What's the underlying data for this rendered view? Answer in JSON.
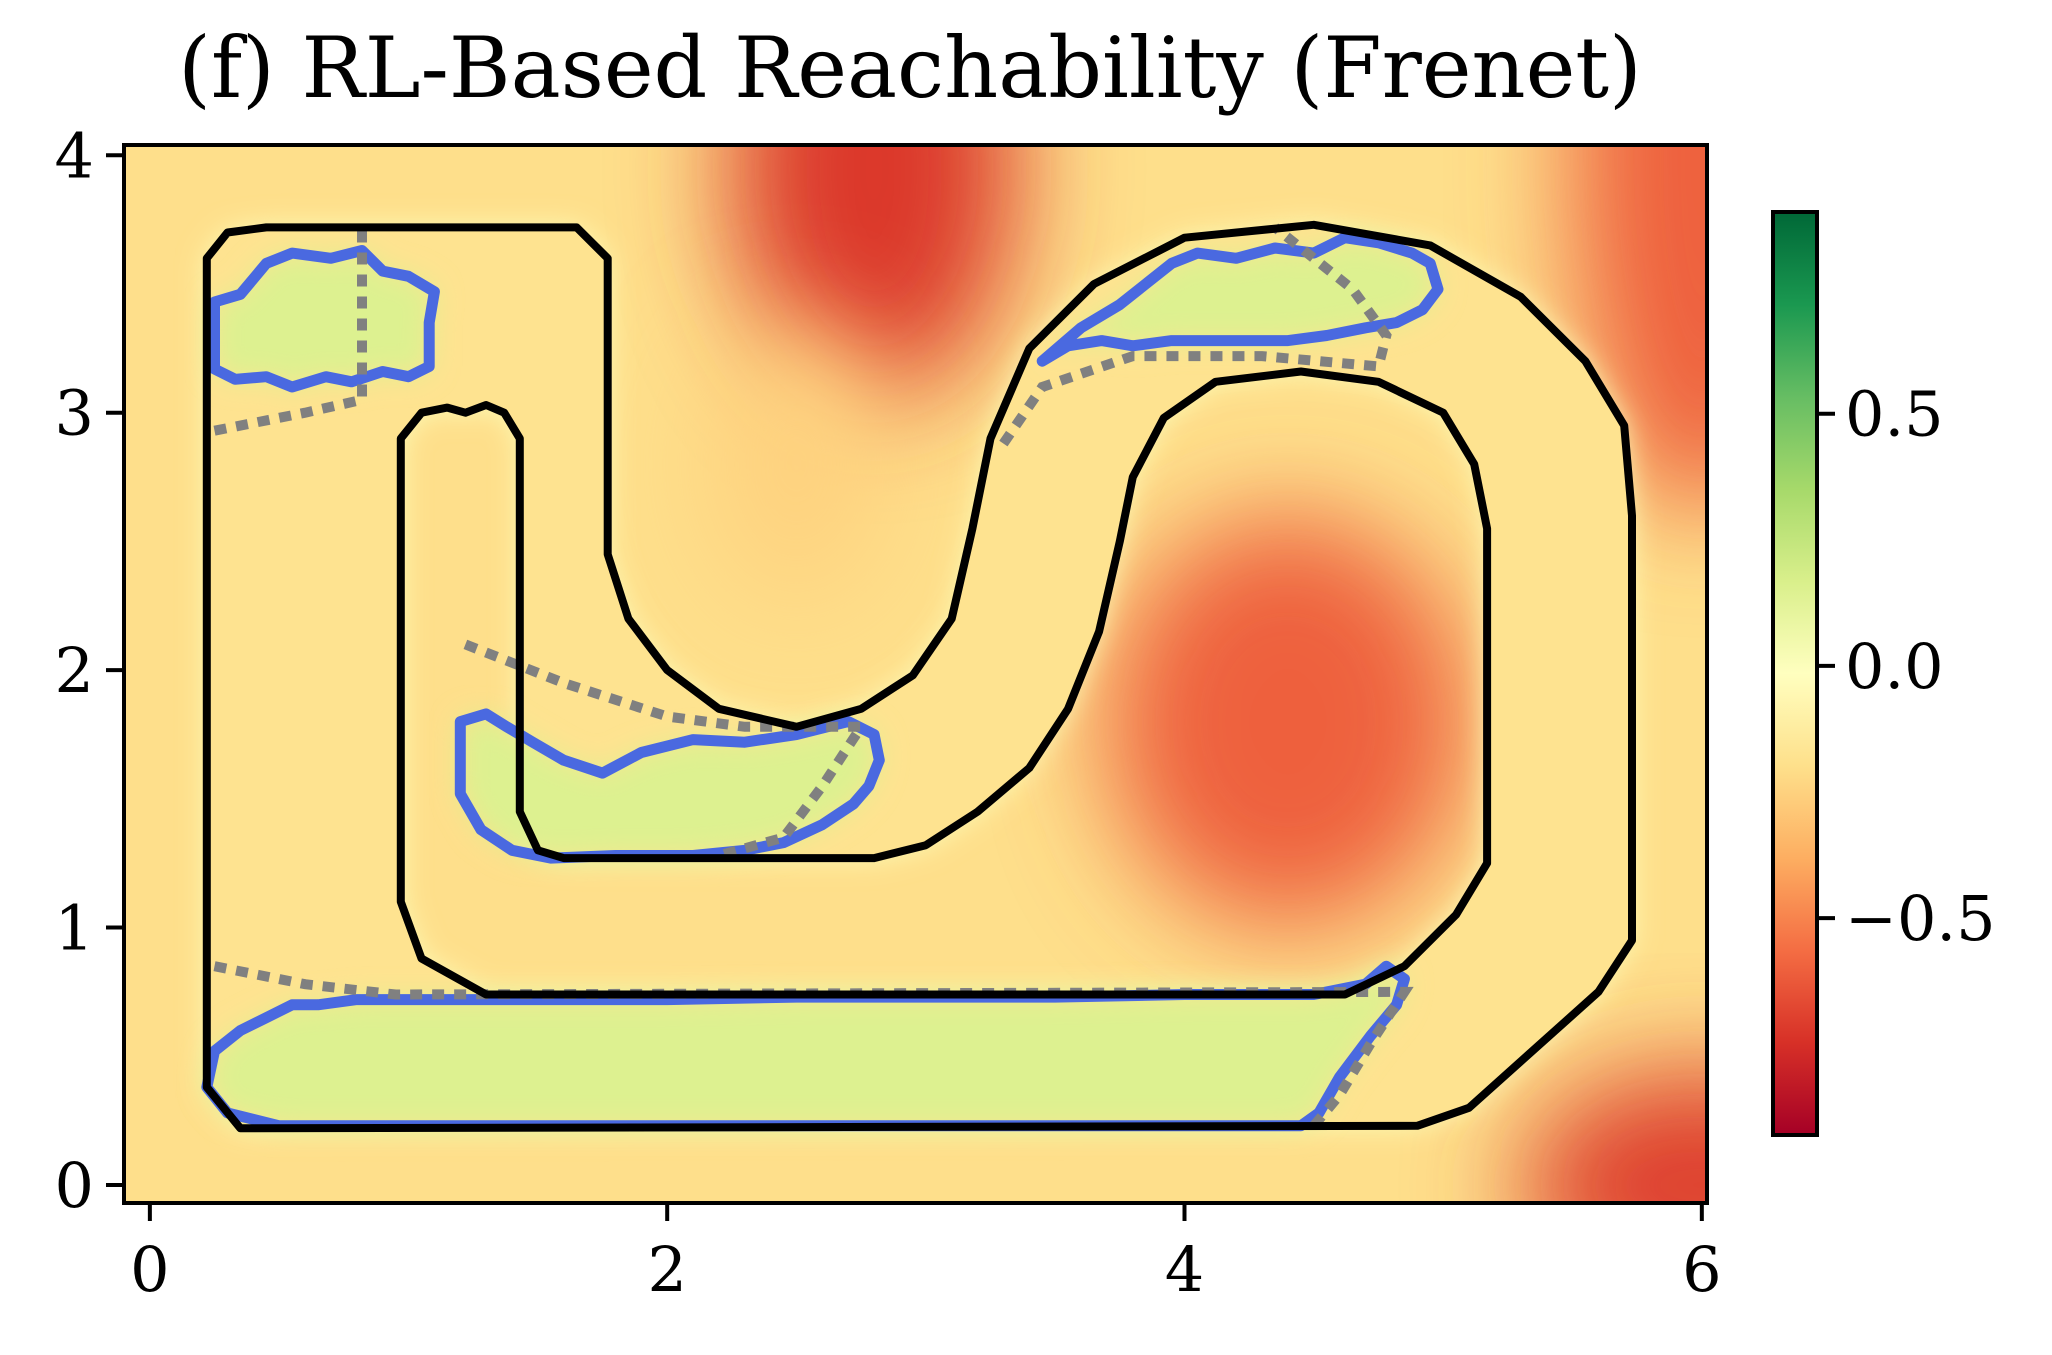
{
  "chart_data": {
    "type": "heatmap",
    "title": "(f) RL-Based Reachability (Frenet)",
    "xlabel": "",
    "ylabel": "",
    "xlim": [
      -0.1,
      6.02
    ],
    "ylim": [
      -0.07,
      4.04
    ],
    "x_ticks": [
      0,
      2,
      4,
      6
    ],
    "x_tick_labels": [
      "0",
      "2",
      "4",
      "6"
    ],
    "y_ticks": [
      0,
      1,
      2,
      3,
      4
    ],
    "y_tick_labels": [
      "0",
      "1",
      "2",
      "3",
      "4"
    ],
    "grid": false,
    "colormap": "RdYlGn",
    "colorbar": {
      "range": [
        -0.93,
        0.9
      ],
      "ticks": [
        0.5,
        0.0,
        -0.5
      ],
      "tick_labels": [
        "0.5",
        "0.0",
        "−0.5"
      ],
      "stops": [
        "#a50026",
        "#d73027",
        "#f46d43",
        "#fdae61",
        "#fee08b",
        "#ffffbf",
        "#d9ef8b",
        "#a6d96a",
        "#66bd63",
        "#1a9850",
        "#006837"
      ]
    },
    "value_field": {
      "base_value": -0.2,
      "blobs": [
        {
          "center": [
            2.8,
            3.95
          ],
          "radius": [
            0.55,
            0.9
          ],
          "value": -0.72
        },
        {
          "center": [
            2.5,
            2.8
          ],
          "radius": [
            0.35,
            0.55
          ],
          "value": -0.25
        },
        {
          "center": [
            4.4,
            1.8
          ],
          "radius": [
            0.7,
            0.8
          ],
          "value": -0.6
        },
        {
          "center": [
            6.0,
            4.0
          ],
          "radius": [
            0.5,
            1.4
          ],
          "value": -0.6
        },
        {
          "center": [
            6.0,
            0.0
          ],
          "radius": [
            0.7,
            0.45
          ],
          "value": -0.7
        }
      ],
      "track_value": -0.18,
      "track_edge_value": 0.0,
      "reachable_value": 0.15
    },
    "series": [
      {
        "kind": "track-boundary",
        "color": "#000000",
        "points": [
          [
            0.45,
            3.72
          ],
          [
            1.65,
            3.72
          ],
          [
            1.77,
            3.6
          ],
          [
            1.77,
            2.45
          ],
          [
            1.85,
            2.2
          ],
          [
            2.0,
            2.0
          ],
          [
            2.2,
            1.85
          ],
          [
            2.5,
            1.78
          ],
          [
            2.75,
            1.85
          ],
          [
            2.95,
            1.98
          ],
          [
            3.1,
            2.2
          ],
          [
            3.18,
            2.55
          ],
          [
            3.25,
            2.9
          ],
          [
            3.4,
            3.25
          ],
          [
            3.65,
            3.5
          ],
          [
            4.0,
            3.68
          ],
          [
            4.5,
            3.73
          ],
          [
            4.95,
            3.65
          ],
          [
            5.3,
            3.45
          ],
          [
            5.55,
            3.2
          ],
          [
            5.7,
            2.95
          ],
          [
            5.73,
            2.6
          ],
          [
            5.73,
            0.95
          ],
          [
            5.6,
            0.75
          ],
          [
            5.1,
            0.3
          ],
          [
            4.9,
            0.23
          ],
          [
            0.35,
            0.22
          ],
          [
            0.22,
            0.38
          ],
          [
            0.22,
            3.6
          ],
          [
            0.3,
            3.7
          ]
        ]
      },
      {
        "kind": "track-boundary",
        "color": "#000000",
        "points": [
          [
            1.22,
            3.0
          ],
          [
            1.3,
            3.03
          ],
          [
            1.37,
            3.0
          ],
          [
            1.43,
            2.9
          ],
          [
            1.43,
            1.45
          ],
          [
            1.5,
            1.3
          ],
          [
            1.6,
            1.27
          ],
          [
            2.8,
            1.27
          ],
          [
            3.0,
            1.32
          ],
          [
            3.2,
            1.45
          ],
          [
            3.4,
            1.62
          ],
          [
            3.55,
            1.85
          ],
          [
            3.67,
            2.15
          ],
          [
            3.75,
            2.5
          ],
          [
            3.8,
            2.75
          ],
          [
            3.92,
            2.98
          ],
          [
            4.12,
            3.12
          ],
          [
            4.45,
            3.16
          ],
          [
            4.75,
            3.12
          ],
          [
            5.0,
            3.0
          ],
          [
            5.12,
            2.8
          ],
          [
            5.17,
            2.55
          ],
          [
            5.17,
            1.25
          ],
          [
            5.05,
            1.05
          ],
          [
            4.85,
            0.85
          ],
          [
            4.62,
            0.74
          ],
          [
            1.3,
            0.74
          ],
          [
            1.05,
            0.88
          ],
          [
            0.97,
            1.1
          ],
          [
            0.97,
            2.9
          ],
          [
            1.05,
            3.0
          ],
          [
            1.15,
            3.02
          ]
        ]
      },
      {
        "kind": "reachable-set",
        "color": "#4a69e0",
        "points": [
          [
            0.25,
            3.43
          ],
          [
            0.35,
            3.46
          ],
          [
            0.45,
            3.58
          ],
          [
            0.55,
            3.62
          ],
          [
            0.7,
            3.6
          ],
          [
            0.82,
            3.63
          ],
          [
            0.9,
            3.55
          ],
          [
            1.0,
            3.53
          ],
          [
            1.1,
            3.47
          ],
          [
            1.08,
            3.35
          ],
          [
            1.08,
            3.18
          ],
          [
            1.0,
            3.14
          ],
          [
            0.9,
            3.16
          ],
          [
            0.78,
            3.12
          ],
          [
            0.68,
            3.14
          ],
          [
            0.55,
            3.1
          ],
          [
            0.45,
            3.14
          ],
          [
            0.33,
            3.13
          ],
          [
            0.25,
            3.17
          ]
        ]
      },
      {
        "kind": "reachable-set",
        "color": "#4a69e0",
        "points": [
          [
            3.45,
            3.2
          ],
          [
            3.55,
            3.26
          ],
          [
            3.68,
            3.28
          ],
          [
            3.8,
            3.26
          ],
          [
            3.95,
            3.28
          ],
          [
            4.1,
            3.28
          ],
          [
            4.25,
            3.28
          ],
          [
            4.4,
            3.28
          ],
          [
            4.55,
            3.3
          ],
          [
            4.7,
            3.33
          ],
          [
            4.82,
            3.35
          ],
          [
            4.92,
            3.4
          ],
          [
            4.98,
            3.48
          ],
          [
            4.95,
            3.58
          ],
          [
            4.88,
            3.62
          ],
          [
            4.75,
            3.66
          ],
          [
            4.62,
            3.68
          ],
          [
            4.5,
            3.62
          ],
          [
            4.35,
            3.64
          ],
          [
            4.2,
            3.6
          ],
          [
            4.05,
            3.62
          ],
          [
            3.95,
            3.58
          ],
          [
            3.85,
            3.5
          ],
          [
            3.75,
            3.42
          ],
          [
            3.6,
            3.33
          ]
        ]
      },
      {
        "kind": "reachable-set",
        "color": "#4a69e0",
        "points": [
          [
            1.2,
            1.8
          ],
          [
            1.3,
            1.83
          ],
          [
            1.38,
            1.78
          ],
          [
            1.48,
            1.72
          ],
          [
            1.6,
            1.65
          ],
          [
            1.75,
            1.6
          ],
          [
            1.9,
            1.68
          ],
          [
            2.1,
            1.73
          ],
          [
            2.3,
            1.72
          ],
          [
            2.5,
            1.75
          ],
          [
            2.7,
            1.8
          ],
          [
            2.8,
            1.75
          ],
          [
            2.82,
            1.65
          ],
          [
            2.78,
            1.55
          ],
          [
            2.72,
            1.48
          ],
          [
            2.6,
            1.4
          ],
          [
            2.45,
            1.33
          ],
          [
            2.3,
            1.3
          ],
          [
            2.1,
            1.28
          ],
          [
            1.8,
            1.28
          ],
          [
            1.55,
            1.27
          ],
          [
            1.4,
            1.3
          ],
          [
            1.28,
            1.38
          ],
          [
            1.2,
            1.52
          ]
        ]
      },
      {
        "kind": "reachable-set",
        "color": "#4a69e0",
        "points": [
          [
            0.25,
            0.52
          ],
          [
            0.35,
            0.6
          ],
          [
            0.45,
            0.65
          ],
          [
            0.55,
            0.7
          ],
          [
            0.65,
            0.7
          ],
          [
            0.8,
            0.72
          ],
          [
            0.95,
            0.72
          ],
          [
            1.2,
            0.72
          ],
          [
            1.5,
            0.72
          ],
          [
            2.0,
            0.72
          ],
          [
            2.5,
            0.73
          ],
          [
            3.0,
            0.73
          ],
          [
            3.5,
            0.73
          ],
          [
            4.0,
            0.74
          ],
          [
            4.5,
            0.74
          ],
          [
            4.7,
            0.78
          ],
          [
            4.78,
            0.85
          ],
          [
            4.85,
            0.8
          ],
          [
            4.82,
            0.7
          ],
          [
            4.72,
            0.58
          ],
          [
            4.6,
            0.42
          ],
          [
            4.52,
            0.28
          ],
          [
            4.45,
            0.23
          ],
          [
            4.2,
            0.23
          ],
          [
            3.5,
            0.23
          ],
          [
            2.5,
            0.23
          ],
          [
            1.5,
            0.23
          ],
          [
            0.5,
            0.23
          ],
          [
            0.3,
            0.28
          ],
          [
            0.22,
            0.38
          ]
        ]
      },
      {
        "kind": "dotted-guide",
        "color": "#808080",
        "dash": true,
        "points": [
          [
            0.25,
            2.93
          ],
          [
            0.6,
            3.0
          ],
          [
            0.82,
            3.05
          ],
          [
            0.82,
            3.72
          ]
        ]
      },
      {
        "kind": "dotted-guide",
        "color": "#808080",
        "dash": true,
        "points": [
          [
            3.3,
            2.88
          ],
          [
            3.45,
            3.1
          ],
          [
            3.8,
            3.22
          ],
          [
            4.3,
            3.22
          ],
          [
            4.75,
            3.18
          ],
          [
            4.78,
            3.3
          ],
          [
            4.65,
            3.48
          ],
          [
            4.5,
            3.6
          ],
          [
            4.35,
            3.72
          ]
        ]
      },
      {
        "kind": "dotted-guide",
        "color": "#808080",
        "dash": true,
        "points": [
          [
            1.22,
            2.1
          ],
          [
            1.6,
            1.95
          ],
          [
            2.0,
            1.82
          ],
          [
            2.3,
            1.78
          ],
          [
            2.75,
            1.78
          ],
          [
            2.6,
            1.55
          ],
          [
            2.45,
            1.35
          ],
          [
            2.2,
            1.28
          ]
        ]
      },
      {
        "kind": "dotted-guide",
        "color": "#808080",
        "dash": true,
        "points": [
          [
            0.25,
            0.85
          ],
          [
            0.6,
            0.78
          ],
          [
            0.95,
            0.74
          ],
          [
            4.85,
            0.75
          ],
          [
            4.72,
            0.55
          ],
          [
            4.6,
            0.35
          ],
          [
            4.5,
            0.23
          ]
        ]
      }
    ]
  }
}
